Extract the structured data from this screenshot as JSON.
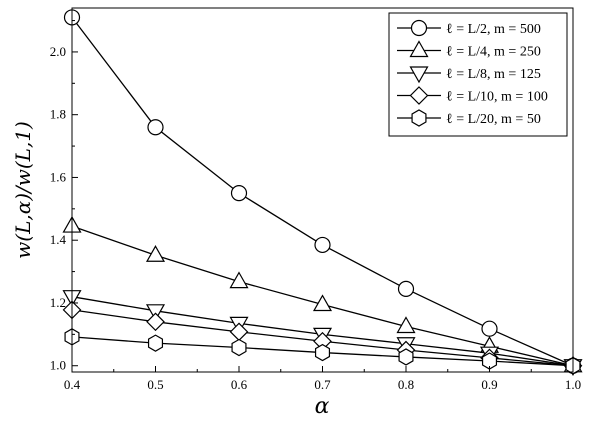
{
  "chart_data": {
    "type": "line",
    "xlabel": "α",
    "ylabel": "w(L,α)/w(L,1)",
    "xlim": [
      0.4,
      1.0
    ],
    "ylim": [
      0.98,
      2.14
    ],
    "x_ticks": [
      "0.4",
      "0.5",
      "0.6",
      "0.7",
      "0.8",
      "0.9",
      "1.0"
    ],
    "y_ticks": [
      "1.0",
      "1.2",
      "1.4",
      "1.6",
      "1.8",
      "2.0"
    ],
    "grid": false,
    "legend_position": "top-right",
    "x": [
      0.4,
      0.5,
      0.6,
      0.7,
      0.8,
      0.9,
      1.0
    ],
    "series": [
      {
        "name": "ℓ = L/2,   m = 500",
        "marker": "circle",
        "values": [
          2.11,
          1.76,
          1.55,
          1.385,
          1.245,
          1.118,
          1.0
        ]
      },
      {
        "name": "ℓ = L/4,   m = 250",
        "marker": "triangle-up",
        "values": [
          1.445,
          1.352,
          1.268,
          1.195,
          1.125,
          1.062,
          1.0
        ]
      },
      {
        "name": "ℓ = L/8,   m = 125",
        "marker": "triangle-down",
        "values": [
          1.22,
          1.175,
          1.135,
          1.1,
          1.07,
          1.04,
          1.0
        ]
      },
      {
        "name": "ℓ = L/10, m = 100",
        "marker": "diamond",
        "values": [
          1.178,
          1.14,
          1.108,
          1.078,
          1.05,
          1.025,
          1.0
        ]
      },
      {
        "name": "ℓ = L/20, m = 50",
        "marker": "hexagon",
        "values": [
          1.092,
          1.072,
          1.058,
          1.042,
          1.028,
          1.015,
          1.0
        ]
      }
    ]
  }
}
